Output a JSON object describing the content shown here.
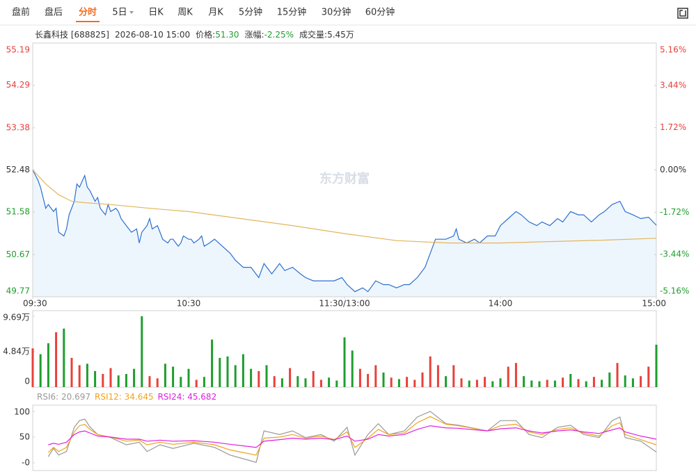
{
  "tabs": {
    "items": [
      "盘前",
      "盘后",
      "分时",
      "5日",
      "日K",
      "周K",
      "月K",
      "5分钟",
      "15分钟",
      "30分钟",
      "60分钟"
    ],
    "active": 2,
    "dropdown": 3
  },
  "info": {
    "name": "长鑫科技 [688825]",
    "time": "2026-08-10 15:00",
    "fields": [
      {
        "label": "价格:",
        "value": "51.30",
        "color": "#1f9d2e"
      },
      {
        "label": "涨幅:",
        "value": "-2.25%",
        "color": "#1f9d2e"
      },
      {
        "label": "成交量:",
        "value": "5.45万",
        "color": "#333333"
      }
    ]
  },
  "watermark": "东方财富",
  "chart_data": [
    {
      "type": "line",
      "area": true,
      "area_color": "#eef6fd",
      "up_color": "#e8403a",
      "down_color": "#1f9d2e",
      "flat_color": "#333333",
      "xlim": [
        0,
        240
      ],
      "xticks": [
        {
          "value": 0,
          "label": "09:30"
        },
        {
          "value": 60,
          "label": "10:30"
        },
        {
          "value": 120,
          "label": "11:30/13:00"
        },
        {
          "value": 180,
          "label": "14:00"
        },
        {
          "value": 240,
          "label": "15:00"
        }
      ],
      "ylim": [
        49.77,
        55.19
      ],
      "yticks": [
        55.19,
        54.29,
        53.38,
        52.48,
        51.58,
        50.67,
        49.77
      ],
      "y2lim": [
        -5.16,
        5.16
      ],
      "y2ticks": [
        {
          "value": 5.16,
          "label": "5.16%"
        },
        {
          "value": 3.44,
          "label": "3.44%"
        },
        {
          "value": 1.72,
          "label": "1.72%"
        },
        {
          "value": 0,
          "label": "0.00%"
        },
        {
          "value": -1.72,
          "label": "-1.72%"
        },
        {
          "value": -3.44,
          "label": "-3.44%"
        },
        {
          "value": -5.16,
          "label": "-5.16%"
        }
      ],
      "grid": false,
      "series": [
        {
          "color": "#2b6fd0",
          "x": [
            0,
            2,
            3,
            5,
            6,
            8,
            9,
            10,
            12,
            13,
            14,
            16,
            17,
            18,
            20,
            21,
            22,
            24,
            25,
            26,
            28,
            29,
            30,
            32,
            33,
            34,
            36,
            37,
            38,
            40,
            41,
            42,
            44,
            45,
            46,
            48,
            49,
            50,
            52,
            53,
            54,
            56,
            57,
            58,
            60,
            61,
            62,
            64,
            65,
            66,
            68,
            70,
            73,
            76,
            78,
            81,
            84,
            87,
            89,
            92,
            95,
            97,
            100,
            103,
            105,
            108,
            111,
            113,
            116,
            119,
            121,
            124,
            127,
            129,
            132,
            135,
            137,
            140,
            143,
            145,
            148,
            151,
            153,
            155,
            156,
            159,
            162,
            163,
            164,
            167,
            170,
            172,
            175,
            178,
            180,
            183,
            186,
            188,
            191,
            194,
            196,
            199,
            202,
            204,
            207,
            210,
            212,
            215,
            218,
            220,
            223,
            226,
            228,
            231,
            234,
            237,
            240
          ],
          "values": [
            52.48,
            52.26,
            52.11,
            51.66,
            51.74,
            51.59,
            51.66,
            51.15,
            51.07,
            51.22,
            51.52,
            51.81,
            52.18,
            52.11,
            52.36,
            52.11,
            52.04,
            51.81,
            51.89,
            51.66,
            51.52,
            51.74,
            51.59,
            51.66,
            51.59,
            51.44,
            51.29,
            51.22,
            51.15,
            51.22,
            50.92,
            51.15,
            51.29,
            51.44,
            51.22,
            51.29,
            51.15,
            51.0,
            50.92,
            51.0,
            51.0,
            50.85,
            50.92,
            51.07,
            51.0,
            51.0,
            50.92,
            51.0,
            51.07,
            50.85,
            50.92,
            51.0,
            50.85,
            50.7,
            50.55,
            50.4,
            50.4,
            50.18,
            50.48,
            50.26,
            50.48,
            50.33,
            50.4,
            50.26,
            50.18,
            50.11,
            50.11,
            50.11,
            50.11,
            50.18,
            50.03,
            49.88,
            49.96,
            49.88,
            50.11,
            50.03,
            50.03,
            49.96,
            50.03,
            50.03,
            50.18,
            50.4,
            50.7,
            51.0,
            51.0,
            51.0,
            51.07,
            51.22,
            51.0,
            50.92,
            51.0,
            50.92,
            51.07,
            51.07,
            51.29,
            51.44,
            51.59,
            51.52,
            51.37,
            51.29,
            51.37,
            51.29,
            51.44,
            51.37,
            51.59,
            51.52,
            51.52,
            51.37,
            51.52,
            51.59,
            51.74,
            51.81,
            51.59,
            51.52,
            51.44,
            51.47,
            51.3
          ]
        },
        {
          "color": "#e2b55b",
          "x": [
            0,
            5,
            10,
            15,
            20,
            30,
            45,
            60,
            80,
            100,
            120,
            140,
            160,
            180,
            200,
            220,
            240
          ],
          "values": [
            52.48,
            52.18,
            51.95,
            51.81,
            51.78,
            51.74,
            51.66,
            51.59,
            51.44,
            51.29,
            51.12,
            50.97,
            50.92,
            50.92,
            50.95,
            50.98,
            51.02
          ]
        }
      ]
    },
    {
      "type": "bar",
      "xlim": [
        0,
        240
      ],
      "ylim": [
        0,
        10.45
      ],
      "yticks": [
        {
          "value": 9.69,
          "label": "9.69万"
        },
        {
          "value": 4.84,
          "label": "4.84万"
        },
        0
      ],
      "x": [
        0,
        3,
        6,
        9,
        12,
        15,
        18,
        21,
        24,
        27,
        30,
        33,
        36,
        39,
        42,
        45,
        48,
        51,
        54,
        57,
        60,
        63,
        66,
        69,
        72,
        75,
        78,
        81,
        84,
        87,
        90,
        93,
        96,
        99,
        102,
        105,
        108,
        111,
        114,
        117,
        120,
        123,
        126,
        129,
        132,
        135,
        138,
        141,
        144,
        147,
        150,
        153,
        156,
        159,
        162,
        165,
        168,
        171,
        174,
        177,
        180,
        183,
        186,
        189,
        192,
        195,
        198,
        201,
        204,
        207,
        210,
        213,
        216,
        219,
        222,
        225,
        228,
        231,
        234,
        237,
        240
      ],
      "values": [
        5.3,
        4.5,
        6.0,
        7.5,
        8.0,
        4.0,
        3.0,
        3.2,
        2.2,
        1.8,
        2.6,
        1.6,
        1.8,
        2.5,
        9.69,
        1.5,
        1.2,
        3.2,
        2.8,
        1.4,
        2.5,
        1.0,
        1.4,
        6.5,
        4.0,
        4.2,
        3.0,
        4.5,
        2.5,
        2.2,
        3.0,
        1.5,
        1.2,
        2.6,
        1.5,
        1.2,
        2.2,
        1.0,
        1.3,
        0.9,
        6.8,
        5.0,
        2.5,
        1.8,
        3.0,
        2.0,
        1.3,
        1.1,
        1.4,
        1.0,
        2.0,
        4.2,
        3.0,
        1.5,
        3.0,
        1.2,
        0.9,
        1.0,
        1.4,
        0.8,
        1.2,
        2.8,
        3.3,
        1.5,
        0.9,
        0.8,
        1.0,
        0.9,
        1.3,
        1.8,
        1.1,
        0.8,
        1.4,
        1.0,
        2.0,
        3.3,
        1.6,
        1.2,
        1.5,
        2.8,
        5.8
      ],
      "colors": [
        "#e8403a",
        "#1f9d2e",
        "#1f9d2e",
        "#e8403a",
        "#1f9d2e",
        "#e8403a",
        "#e8403a",
        "#1f9d2e",
        "#1f9d2e",
        "#e8403a",
        "#e8403a",
        "#1f9d2e",
        "#1f9d2e",
        "#1f9d2e",
        "#1f9d2e",
        "#e8403a",
        "#e8403a",
        "#1f9d2e",
        "#1f9d2e",
        "#1f9d2e",
        "#1f9d2e",
        "#e8403a",
        "#1f9d2e",
        "#1f9d2e",
        "#1f9d2e",
        "#1f9d2e",
        "#1f9d2e",
        "#1f9d2e",
        "#1f9d2e",
        "#e8403a",
        "#1f9d2e",
        "#e8403a",
        "#1f9d2e",
        "#e8403a",
        "#1f9d2e",
        "#1f9d2e",
        "#e8403a",
        "#e8403a",
        "#1f9d2e",
        "#1f9d2e",
        "#1f9d2e",
        "#1f9d2e",
        "#e8403a",
        "#e8403a",
        "#e8403a",
        "#1f9d2e",
        "#e8403a",
        "#1f9d2e",
        "#e8403a",
        "#e8403a",
        "#e8403a",
        "#e8403a",
        "#e8403a",
        "#1f9d2e",
        "#e8403a",
        "#e8403a",
        "#1f9d2e",
        "#e8403a",
        "#e8403a",
        "#1f9d2e",
        "#1f9d2e",
        "#e8403a",
        "#e8403a",
        "#1f9d2e",
        "#1f9d2e",
        "#1f9d2e",
        "#e8403a",
        "#1f9d2e",
        "#e8403a",
        "#1f9d2e",
        "#e8403a",
        "#1f9d2e",
        "#e8403a",
        "#1f9d2e",
        "#1f9d2e",
        "#e8403a",
        "#1f9d2e",
        "#1f9d2e",
        "#e8403a",
        "#e8403a",
        "#1f9d2e"
      ]
    },
    {
      "type": "line",
      "xlim": [
        0,
        240
      ],
      "ylim": [
        -15,
        112
      ],
      "yticks": [
        100,
        50,
        {
          "value": 0,
          "label": "-0"
        }
      ],
      "x": [
        6,
        8,
        10,
        13,
        16,
        18,
        20,
        22,
        25,
        30,
        36,
        41,
        44,
        49,
        54,
        62,
        70,
        76,
        81,
        86,
        89,
        95,
        100,
        105,
        111,
        116,
        121,
        124,
        129,
        133,
        137,
        143,
        148,
        153,
        159,
        164,
        175,
        180,
        186,
        191,
        196,
        202,
        207,
        212,
        218,
        223,
        226,
        228,
        234,
        240
      ],
      "series": [
        {
          "name": "RSI6: 20.697",
          "color": "#999999",
          "values": [
            12,
            28,
            15,
            22,
            69,
            82,
            85,
            70,
            55,
            49,
            35,
            40,
            22,
            35,
            28,
            38,
            30,
            15,
            8,
            1,
            62,
            55,
            62,
            49,
            55,
            42,
            69,
            15,
            55,
            76,
            55,
            62,
            89,
            100,
            76,
            73,
            62,
            82,
            82,
            55,
            49,
            69,
            73,
            55,
            49,
            82,
            89,
            49,
            42,
            21
          ]
        },
        {
          "name": "RSI12: 34.645",
          "color": "#f0a31a",
          "values": [
            20,
            30,
            22,
            30,
            60,
            72,
            75,
            65,
            55,
            50,
            42,
            44,
            35,
            40,
            36,
            40,
            35,
            25,
            20,
            15,
            48,
            50,
            55,
            48,
            52,
            45,
            60,
            30,
            48,
            65,
            55,
            58,
            78,
            90,
            75,
            72,
            62,
            72,
            75,
            60,
            55,
            65,
            68,
            58,
            52,
            72,
            78,
            55,
            45,
            35
          ]
        },
        {
          "name": "RSI24: 45.682",
          "color": "#e020e0",
          "values": [
            35,
            38,
            36,
            40,
            55,
            60,
            62,
            58,
            52,
            50,
            46,
            46,
            42,
            44,
            42,
            43,
            40,
            36,
            33,
            30,
            42,
            45,
            48,
            46,
            48,
            45,
            52,
            42,
            46,
            55,
            52,
            55,
            65,
            72,
            68,
            67,
            62,
            66,
            68,
            62,
            58,
            62,
            64,
            60,
            57,
            64,
            68,
            60,
            52,
            46
          ]
        }
      ]
    }
  ]
}
